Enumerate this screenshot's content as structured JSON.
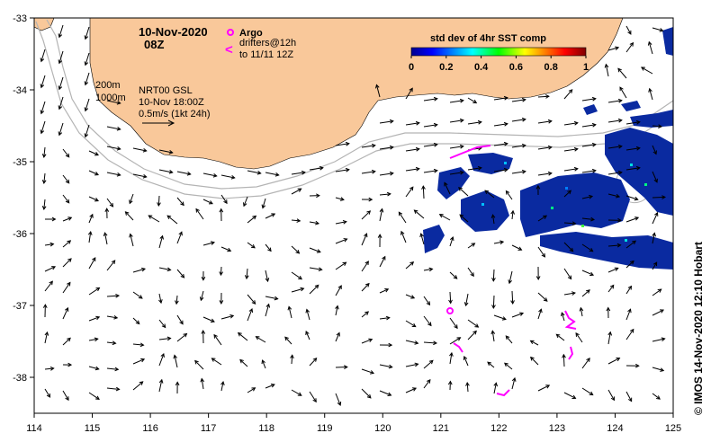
{
  "header": {
    "date": "10-Nov-2020",
    "time": "08Z"
  },
  "legend": {
    "argo_label": "Argo",
    "argo_color": "#ff00ff",
    "drifter_symbol": "<",
    "drifters_line1": "drifters@12h",
    "drifters_line2": "to 11/11 12Z",
    "drifter_color": "#ff00ff",
    "depth_200": "200m",
    "depth_1000": "1000m",
    "model": "NRT00 GSL",
    "model_time": "10-Nov 18:00Z",
    "scale": "0.5m/s (1kt 24h)"
  },
  "colorbar": {
    "title": "std dev of 4hr SST comp",
    "ticks": [
      "0",
      "0.2",
      "0.4",
      "0.6",
      "0.8",
      "1"
    ]
  },
  "axes": {
    "x_ticks": [
      "114",
      "115",
      "116",
      "117",
      "118",
      "119",
      "120",
      "121",
      "122",
      "123",
      "124",
      "125"
    ],
    "y_ticks": [
      "-33",
      "-34",
      "-35",
      "-36",
      "-37",
      "-38"
    ],
    "lon_range": [
      114,
      125
    ],
    "lat_range": [
      -38.5,
      -33
    ]
  },
  "credit": "© IMOS 14-Nov-2020 12:10 Hobart",
  "colors": {
    "land": "#f9c89a",
    "sst_low": "#0a2aa0",
    "isobath": "#b4b4b4",
    "arrow": "#000000"
  },
  "argo_float": {
    "lon": 121.1,
    "lat": -37.1
  }
}
